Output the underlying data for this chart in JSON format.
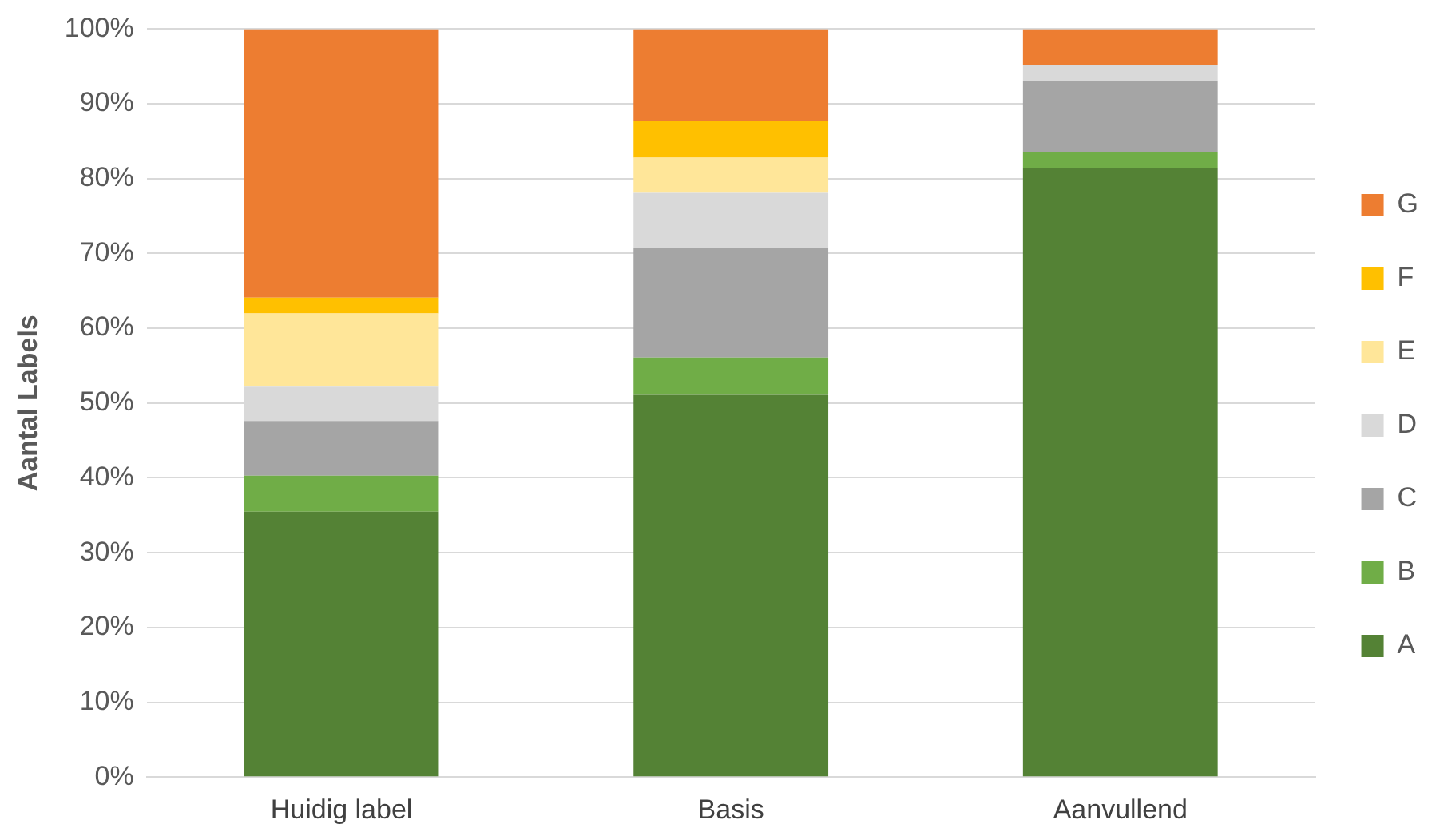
{
  "chart_data": {
    "type": "bar",
    "stacked": true,
    "ylabel": "Aantal Labels",
    "categories": [
      "Huidig label",
      "Basis",
      "Aanvullend"
    ],
    "series": [
      {
        "name": "A",
        "color": "#548235",
        "values": [
          35.5,
          51.1,
          81.4
        ]
      },
      {
        "name": "B",
        "color": "#70ad47",
        "values": [
          4.8,
          5.0,
          2.2
        ]
      },
      {
        "name": "C",
        "color": "#a5a5a5",
        "values": [
          7.3,
          14.7,
          9.4
        ]
      },
      {
        "name": "D",
        "color": "#d9d9d9",
        "values": [
          4.6,
          7.3,
          2.2
        ]
      },
      {
        "name": "E",
        "color": "#ffe699",
        "values": [
          9.8,
          4.7,
          0
        ]
      },
      {
        "name": "F",
        "color": "#ffc000",
        "values": [
          2.1,
          4.9,
          0
        ]
      },
      {
        "name": "G",
        "color": "#ed7d31",
        "values": [
          35.9,
          12.3,
          4.8
        ]
      }
    ],
    "ylim": [
      0,
      100
    ],
    "yticks": [
      {
        "value": 0,
        "label": "0%"
      },
      {
        "value": 10,
        "label": "10%"
      },
      {
        "value": 20,
        "label": "20%"
      },
      {
        "value": 30,
        "label": "30%"
      },
      {
        "value": 40,
        "label": "40%"
      },
      {
        "value": 50,
        "label": "50%"
      },
      {
        "value": 60,
        "label": "60%"
      },
      {
        "value": 70,
        "label": "70%"
      },
      {
        "value": 80,
        "label": "80%"
      },
      {
        "value": 90,
        "label": "90%"
      },
      {
        "value": 100,
        "label": "100%"
      }
    ],
    "grid": "y",
    "legend": "right"
  }
}
